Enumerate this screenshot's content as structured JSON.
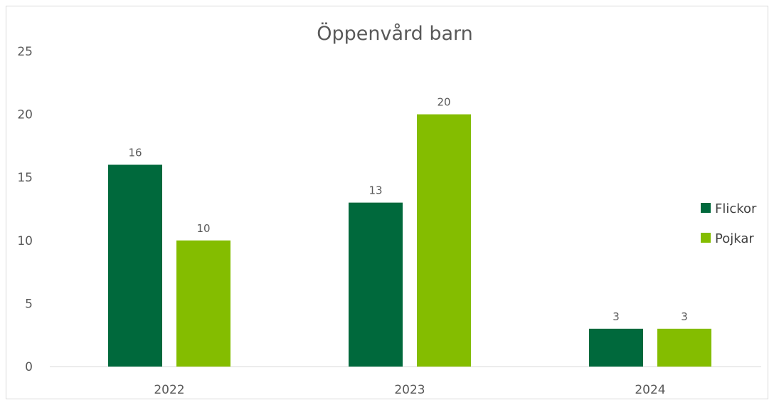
{
  "chart_data": {
    "type": "bar",
    "title": "Öppenvård barn",
    "categories": [
      "2022",
      "2023",
      "2024"
    ],
    "series": [
      {
        "name": "Flickor",
        "values": [
          16,
          13,
          3
        ],
        "color": "#00693c"
      },
      {
        "name": "Pojkar",
        "values": [
          10,
          20,
          3
        ],
        "color": "#84bd00"
      }
    ],
    "ylim": [
      0,
      25
    ],
    "yticks": [
      "0",
      "5",
      "10",
      "15",
      "20",
      "25"
    ],
    "xlabel": "",
    "ylabel": "",
    "grid": false,
    "data_labels": true,
    "legend_position": "right"
  }
}
